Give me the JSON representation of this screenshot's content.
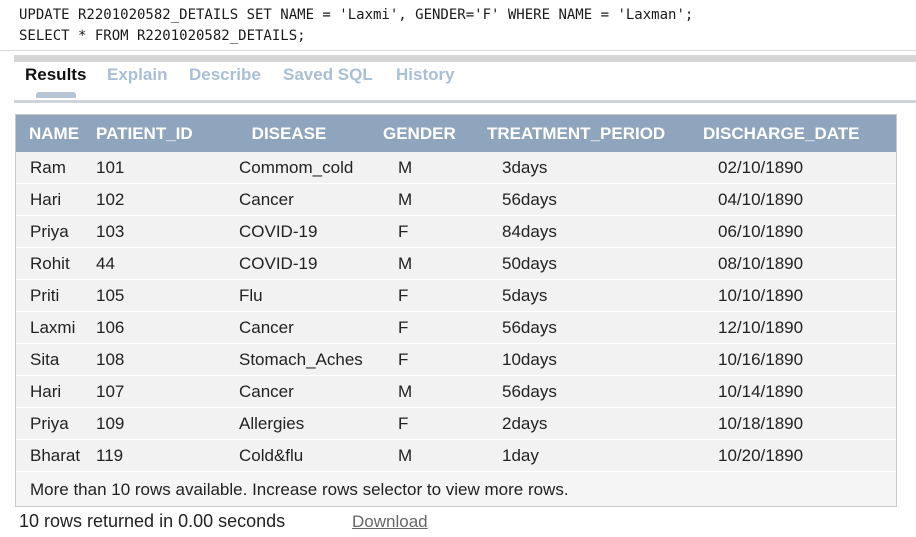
{
  "editor": {
    "lines": [
      "UPDATE R2201020582_DETAILS SET NAME = 'Laxmi', GENDER='F' WHERE NAME = 'Laxman';",
      "SELECT * FROM R2201020582_DETAILS;"
    ]
  },
  "tabs": [
    {
      "label": "Results",
      "active": true
    },
    {
      "label": "Explain",
      "active": false
    },
    {
      "label": "Describe",
      "active": false
    },
    {
      "label": "Saved SQL",
      "active": false
    },
    {
      "label": "History",
      "active": false
    }
  ],
  "table": {
    "columns": [
      "NAME",
      "PATIENT_ID",
      "DISEASE",
      "GENDER",
      "TREATMENT_PERIOD",
      "DISCHARGE_DATE"
    ],
    "rows": [
      [
        "Ram",
        "101",
        "Commom_cold",
        "M",
        "3days",
        "02/10/1890"
      ],
      [
        "Hari",
        "102",
        "Cancer",
        "M",
        "56days",
        "04/10/1890"
      ],
      [
        "Priya",
        "103",
        "COVID-19",
        "F",
        "84days",
        "06/10/1890"
      ],
      [
        "Rohit",
        "44",
        "COVID-19",
        "M",
        "50days",
        "08/10/1890"
      ],
      [
        "Priti",
        "105",
        "Flu",
        "F",
        "5days",
        "10/10/1890"
      ],
      [
        "Laxmi",
        "106",
        "Cancer",
        "F",
        "56days",
        "12/10/1890"
      ],
      [
        "Sita",
        "108",
        "Stomach_Aches",
        "F",
        "10days",
        "10/16/1890"
      ],
      [
        "Hari",
        "107",
        "Cancer",
        "M",
        "56days",
        "10/14/1890"
      ],
      [
        "Priya",
        "109",
        "Allergies",
        "F",
        "2days",
        "10/18/1890"
      ],
      [
        "Bharat",
        "119",
        "Cold&flu",
        "M",
        "1day",
        "10/20/1890"
      ]
    ],
    "more_rows_message": "More than 10 rows available. Increase rows selector to view more rows."
  },
  "footer": {
    "rows_returned": "10 rows returned in 0.00 seconds",
    "download_label": "Download"
  }
}
